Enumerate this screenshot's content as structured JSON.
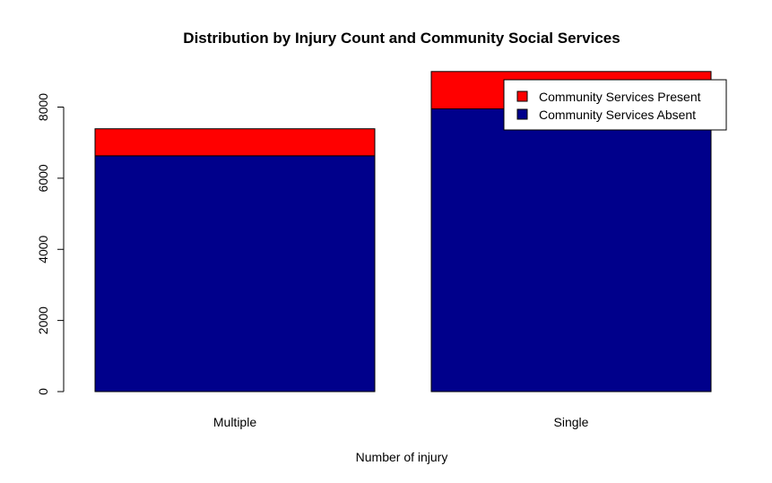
{
  "chart_data": {
    "type": "bar",
    "stacked": true,
    "title": "Distribution by Injury Count and Community Social Services",
    "xlabel": "Number of injury",
    "ylabel": "",
    "categories": [
      "Multiple",
      "Single"
    ],
    "series": [
      {
        "name": "Community Services Absent",
        "color": "#00008B",
        "values": [
          6630,
          7950
        ]
      },
      {
        "name": "Community Services Present",
        "color": "#FF0000",
        "values": [
          760,
          1050
        ]
      }
    ],
    "ylim": [
      0,
      9000
    ],
    "yticks": [
      0,
      2000,
      4000,
      6000,
      8000
    ],
    "legend": {
      "position": "top-right",
      "entries": [
        "Community Services Present",
        "Community Services Absent"
      ]
    },
    "grid": false
  }
}
